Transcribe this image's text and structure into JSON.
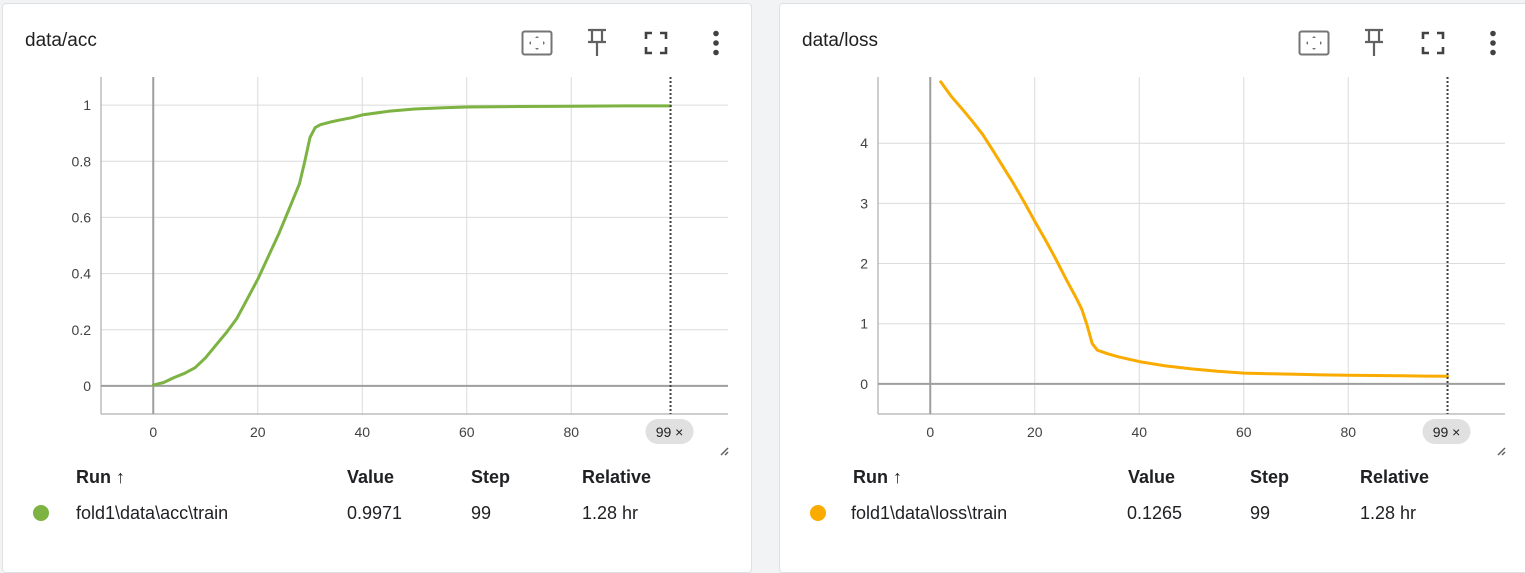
{
  "cards": [
    {
      "title": "data/acc",
      "legend": {
        "headers": {
          "run": "Run ↑",
          "value": "Value",
          "step": "Step",
          "relative": "Relative"
        },
        "rows": [
          {
            "run": "fold1\\data\\acc\\train",
            "value": "0.9971",
            "step": "99",
            "relative": "1.28 hr"
          }
        ]
      },
      "cursor_chip": "99 ×"
    },
    {
      "title": "data/loss",
      "legend": {
        "headers": {
          "run": "Run ↑",
          "value": "Value",
          "step": "Step",
          "relative": "Relative"
        },
        "rows": [
          {
            "run": "fold1\\data\\loss\\train",
            "value": "0.1265",
            "step": "99",
            "relative": "1.28 hr"
          }
        ]
      },
      "cursor_chip": "99 ×"
    }
  ],
  "toolbar_icons": [
    "fit-domain-icon",
    "pin-icon",
    "fullscreen-icon",
    "more-vert-icon"
  ],
  "chart_data": [
    {
      "type": "line",
      "title": "data/acc",
      "xlim": [
        -10,
        110
      ],
      "ylim": [
        -0.1,
        1.1
      ],
      "xticks": [
        "0",
        "20",
        "40",
        "60",
        "80"
      ],
      "yticks": [
        "0",
        "0.2",
        "0.4",
        "0.6",
        "0.8",
        "1"
      ],
      "grid": true,
      "color": "#7cb342",
      "series": [
        {
          "x": [
            0,
            2,
            4,
            6,
            8,
            10,
            12,
            14,
            16,
            18,
            20,
            22,
            24,
            26,
            28,
            29,
            30,
            31,
            32,
            34,
            36,
            38,
            40,
            45,
            50,
            55,
            60,
            70,
            80,
            90,
            99
          ],
          "y": [
            0.003,
            0.012,
            0.03,
            0.045,
            0.065,
            0.1,
            0.145,
            0.19,
            0.24,
            0.31,
            0.38,
            0.46,
            0.54,
            0.63,
            0.72,
            0.8,
            0.885,
            0.92,
            0.93,
            0.94,
            0.948,
            0.955,
            0.965,
            0.978,
            0.986,
            0.99,
            0.993,
            0.995,
            0.996,
            0.997,
            0.9971
          ]
        }
      ],
      "cursor_step": 99
    },
    {
      "type": "line",
      "title": "data/loss",
      "xlim": [
        -10,
        110
      ],
      "ylim": [
        -0.5,
        5.1
      ],
      "xticks": [
        "0",
        "20",
        "40",
        "60",
        "80"
      ],
      "yticks": [
        "0",
        "1",
        "2",
        "3",
        "4"
      ],
      "grid": true,
      "color": "#f9ab00",
      "series": [
        {
          "x": [
            2,
            4,
            6,
            8,
            10,
            12,
            14,
            16,
            18,
            20,
            22,
            24,
            26,
            28,
            29,
            30,
            31,
            32,
            34,
            36,
            38,
            40,
            45,
            50,
            55,
            60,
            65,
            70,
            75,
            80,
            85,
            90,
            95,
            99
          ],
          "y": [
            5.02,
            4.78,
            4.58,
            4.37,
            4.15,
            3.88,
            3.6,
            3.32,
            3.02,
            2.7,
            2.4,
            2.08,
            1.74,
            1.42,
            1.24,
            0.98,
            0.67,
            0.56,
            0.5,
            0.45,
            0.41,
            0.37,
            0.3,
            0.25,
            0.21,
            0.18,
            0.17,
            0.16,
            0.15,
            0.145,
            0.14,
            0.135,
            0.13,
            0.1265
          ]
        }
      ],
      "cursor_step": 99
    }
  ]
}
